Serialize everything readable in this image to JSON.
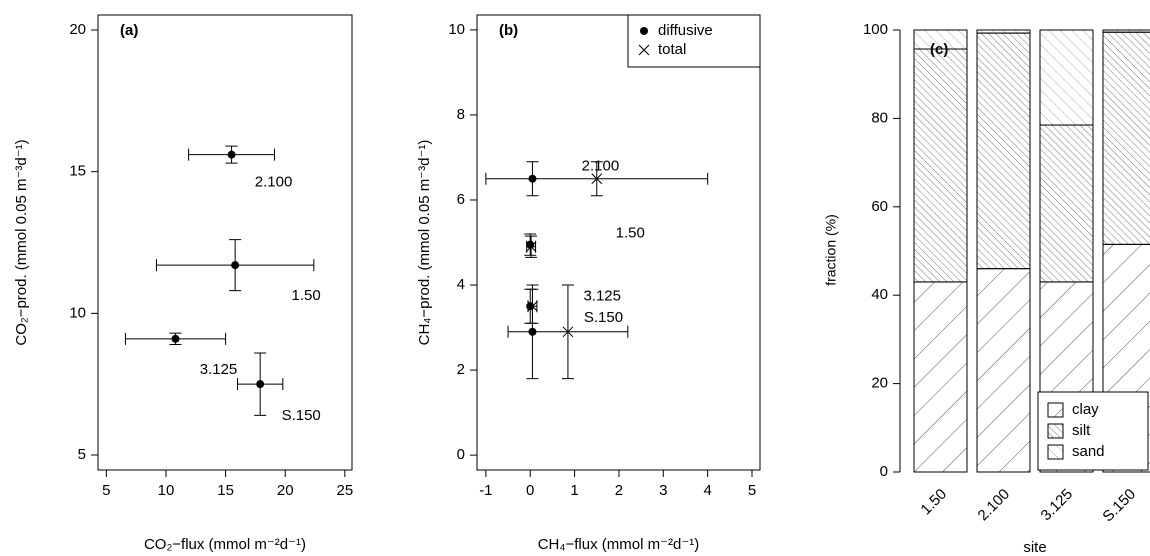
{
  "chart_data": [
    {
      "type": "scatter",
      "title": "(a)",
      "xlabel": "CO₂−flux (mmol m⁻²d⁻¹)",
      "ylabel": "CO₂−prod. (mmol 0.05 m⁻³d⁻¹)",
      "xlim": [
        4.3,
        25.6
      ],
      "ylim": [
        4.47,
        20.53
      ],
      "xticks": [
        5,
        10,
        15,
        20,
        25
      ],
      "yticks": [
        5,
        10,
        15,
        20
      ],
      "series": [
        {
          "marker": "dot",
          "color": "#000",
          "x": [
            15.5,
            15.8,
            10.8,
            17.9
          ],
          "values": [
            15.6,
            11.7,
            9.1,
            7.5
          ],
          "xerr": [
            3.6,
            6.6,
            4.2,
            1.9
          ],
          "yerr": [
            0.3,
            0.9,
            0.2,
            1.1
          ],
          "labels": [
            "2.100",
            "1.50",
            "3.125",
            "S.150"
          ]
        }
      ]
    },
    {
      "type": "scatter",
      "title": "(b)",
      "xlabel": "CH₄−flux (mmol m⁻²d⁻¹)",
      "ylabel": "CH₄−prod. (mmol 0.05 m⁻³d⁻¹)",
      "xlim": [
        -1.2,
        5.18
      ],
      "ylim": [
        -0.35,
        10.35
      ],
      "xticks": [
        -1,
        0,
        1,
        2,
        3,
        4,
        5
      ],
      "yticks": [
        0,
        2,
        4,
        6,
        8,
        10
      ],
      "legend": "top-right",
      "series": [
        {
          "name": "diffusive",
          "marker": "dot",
          "color": "#000",
          "x": [
            0.05,
            0.0,
            0.0,
            0.05
          ],
          "values": [
            6.5,
            4.95,
            3.5,
            2.9
          ],
          "yerr": [
            0.4,
            0.25,
            0.4,
            1.1
          ],
          "labels": [
            "2.100",
            "1.50",
            "3.125",
            "S.150"
          ]
        },
        {
          "name": "total",
          "marker": "x",
          "color": "#000",
          "x": [
            1.5,
            0.02,
            0.05,
            0.85
          ],
          "values": [
            6.5,
            4.9,
            3.5,
            2.9
          ],
          "xerr": [
            2.5,
            0.1,
            0.1,
            1.35
          ],
          "yerr": [
            0.4,
            0.25,
            0.4,
            1.1
          ]
        }
      ]
    },
    {
      "type": "bar",
      "stacked": true,
      "title": "(c)",
      "xlabel": "site",
      "ylabel": "fraction (%)",
      "categories": [
        "1.50",
        "2.100",
        "3.125",
        "S.150"
      ],
      "ylim": [
        0,
        100
      ],
      "yticks": [
        0,
        20,
        40,
        60,
        80,
        100
      ],
      "legend": "bottom-right",
      "series": [
        {
          "name": "clay",
          "color": "#555",
          "values": [
            43,
            46,
            43,
            51.5
          ]
        },
        {
          "name": "silt",
          "color": "#555",
          "values": [
            52.7,
            53.3,
            35.5,
            48
          ]
        },
        {
          "name": "sand",
          "color": "#999",
          "values": [
            4.3,
            0.7,
            21.5,
            0.5
          ]
        }
      ]
    }
  ]
}
